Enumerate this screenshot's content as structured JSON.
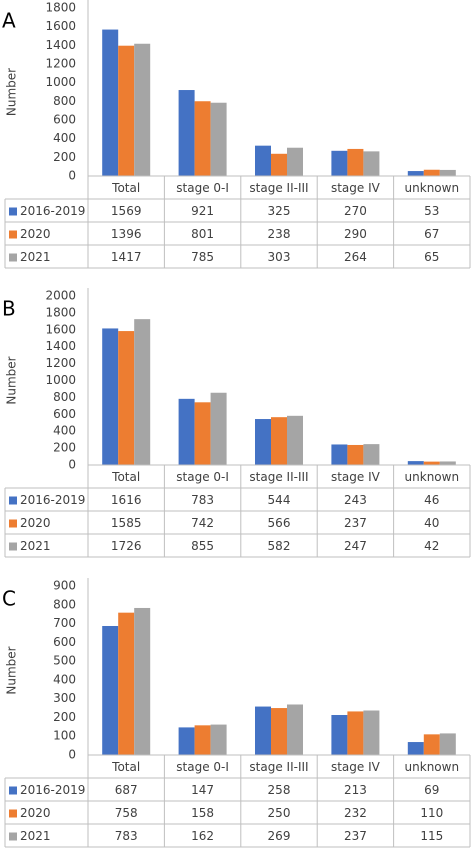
{
  "chart_data": [
    {
      "type": "bar",
      "panel_label": "A",
      "y_label": "Number",
      "categories": [
        "Total",
        "stage 0-I",
        "stage II-III",
        "stage IV",
        "unknown"
      ],
      "series": [
        {
          "name": "2016-2019",
          "color": "#4472c4",
          "values": [
            1569,
            921,
            325,
            270,
            53
          ]
        },
        {
          "name": "2020",
          "color": "#ed7d31",
          "values": [
            1396,
            801,
            238,
            290,
            67
          ]
        },
        {
          "name": "2021",
          "color": "#a5a5a5",
          "values": [
            1417,
            785,
            303,
            264,
            65
          ]
        }
      ],
      "ylim": [
        0,
        1800
      ],
      "yticks": [
        0,
        200,
        400,
        600,
        800,
        1000,
        1200,
        1400,
        1600,
        1800
      ],
      "grid": false
    },
    {
      "type": "bar",
      "panel_label": "B",
      "y_label": "Number",
      "categories": [
        "Total",
        "stage 0-I",
        "stage II-III",
        "stage IV",
        "unknown"
      ],
      "series": [
        {
          "name": "2016-2019",
          "color": "#4472c4",
          "values": [
            1616,
            783,
            544,
            243,
            46
          ]
        },
        {
          "name": "2020",
          "color": "#ed7d31",
          "values": [
            1585,
            742,
            566,
            237,
            40
          ]
        },
        {
          "name": "2021",
          "color": "#a5a5a5",
          "values": [
            1726,
            855,
            582,
            247,
            42
          ]
        }
      ],
      "ylim": [
        0,
        2000
      ],
      "yticks": [
        0,
        200,
        400,
        600,
        800,
        1000,
        1200,
        1400,
        1600,
        1800,
        2000
      ],
      "grid": false
    },
    {
      "type": "bar",
      "panel_label": "C",
      "y_label": "Number",
      "categories": [
        "Total",
        "stage 0-I",
        "stage II-III",
        "stage IV",
        "unknown"
      ],
      "series": [
        {
          "name": "2016-2019",
          "color": "#4472c4",
          "values": [
            687,
            147,
            258,
            213,
            69
          ]
        },
        {
          "name": "2020",
          "color": "#ed7d31",
          "values": [
            758,
            158,
            250,
            232,
            110
          ]
        },
        {
          "name": "2021",
          "color": "#a5a5a5",
          "values": [
            783,
            162,
            269,
            237,
            115
          ]
        }
      ],
      "ylim": [
        0,
        900
      ],
      "yticks": [
        0,
        100,
        200,
        300,
        400,
        500,
        600,
        700,
        800,
        900
      ],
      "grid": false
    }
  ]
}
